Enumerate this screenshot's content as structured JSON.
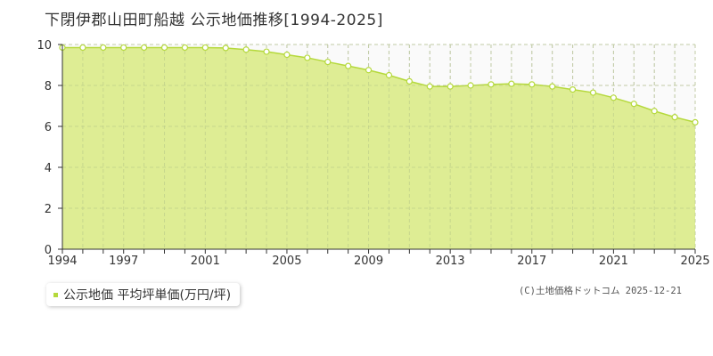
{
  "chart_data": {
    "type": "area",
    "title": "下閉伊郡山田町船越 公示地価推移[1994-2025]",
    "x": [
      1994,
      1995,
      1996,
      1997,
      1998,
      1999,
      2000,
      2001,
      2002,
      2003,
      2004,
      2005,
      2006,
      2007,
      2008,
      2009,
      2010,
      2011,
      2012,
      2013,
      2014,
      2015,
      2016,
      2017,
      2018,
      2019,
      2020,
      2021,
      2022,
      2023,
      2024,
      2025
    ],
    "series": [
      {
        "name": "公示地価 平均坪単価(万円/坪)",
        "values": [
          9.85,
          9.85,
          9.85,
          9.85,
          9.85,
          9.85,
          9.85,
          9.85,
          9.83,
          9.75,
          9.65,
          9.5,
          9.35,
          9.15,
          8.95,
          8.75,
          8.5,
          8.2,
          7.95,
          7.95,
          8.0,
          8.05,
          8.08,
          8.05,
          7.95,
          7.8,
          7.65,
          7.4,
          7.1,
          6.75,
          6.45,
          6.2
        ]
      }
    ],
    "x_ticks": [
      "1994",
      "1997",
      "2001",
      "2005",
      "2009",
      "2013",
      "2017",
      "2021",
      "2025"
    ],
    "y_ticks": [
      "0",
      "2",
      "4",
      "6",
      "8",
      "10"
    ],
    "ylim": [
      0,
      10
    ],
    "xlim": [
      1994,
      2025
    ],
    "grid": true,
    "legend_position": "bottom-left",
    "colors": {
      "fill": "#dcec8e",
      "line": "#b5d93c",
      "marker_fill": "#ffffff"
    }
  },
  "legend": {
    "label": "公示地価 平均坪単価(万円/坪)"
  },
  "credit": "(C)土地価格ドットコム 2025-12-21"
}
